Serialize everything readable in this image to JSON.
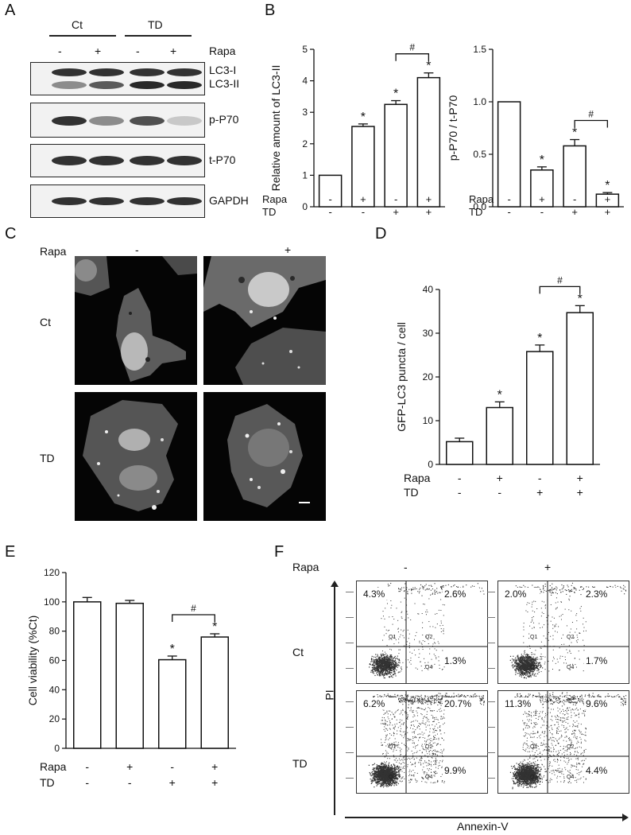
{
  "panels": {
    "A": "A",
    "B": "B",
    "C": "C",
    "D": "D",
    "E": "E",
    "F": "F"
  },
  "panelA": {
    "groups": [
      "Ct",
      "TD"
    ],
    "rapa_label": "Rapa",
    "rapa_signs": [
      "-",
      "+",
      "-",
      "+"
    ],
    "blots": [
      {
        "name": "lc3",
        "labels": [
          "LC3-I",
          "LC3-II"
        ]
      },
      {
        "name": "pp70",
        "labels": [
          "p-P70"
        ]
      },
      {
        "name": "tp70",
        "labels": [
          "t-P70"
        ]
      },
      {
        "name": "gapdh",
        "labels": [
          "GAPDH"
        ]
      }
    ],
    "band_intensity": {
      "lc3_i": [
        0.9,
        0.9,
        0.9,
        0.9
      ],
      "lc3_ii": [
        0.45,
        0.7,
        0.95,
        0.95
      ],
      "pp70": [
        0.9,
        0.45,
        0.75,
        0.15
      ],
      "tp70": [
        0.9,
        0.9,
        0.9,
        0.9
      ],
      "gapdh": [
        0.9,
        0.9,
        0.9,
        0.9
      ]
    }
  },
  "panelC": {
    "rapa_label": "Rapa",
    "col_signs": [
      "-",
      "+"
    ],
    "row_labels": [
      "Ct",
      "TD"
    ]
  },
  "panelF": {
    "rapa_label": "Rapa",
    "col_signs": [
      "-",
      "+"
    ],
    "row_labels": [
      "Ct",
      "TD"
    ],
    "y_axis": "PI",
    "x_axis": "Annexin-V",
    "quadrant_ids": [
      "Q1",
      "Q2",
      "Q3",
      "Q4"
    ],
    "plots": [
      {
        "ul": "4.3%",
        "ur": "2.6%",
        "lr": "1.3%"
      },
      {
        "ul": "2.0%",
        "ur": "2.3%",
        "lr": "1.7%"
      },
      {
        "ul": "6.2%",
        "ur": "20.7%",
        "lr": "9.9%"
      },
      {
        "ul": "11.3%",
        "ur": "9.6%",
        "lr": "4.4%"
      }
    ]
  },
  "conditions": {
    "rapa_label": "Rapa",
    "td_label": "TD",
    "rapa": [
      "-",
      "+",
      "-",
      "+"
    ],
    "td": [
      "-",
      "-",
      "+",
      "+"
    ]
  },
  "chart_data": [
    {
      "id": "B1",
      "type": "bar",
      "ylabel": "Relative amount of LC3-II",
      "ylim": [
        0,
        5
      ],
      "yticks": [
        "0",
        "1",
        "2",
        "3",
        "4",
        "5"
      ],
      "values": [
        1.0,
        2.55,
        3.25,
        4.1
      ],
      "errors": [
        0,
        0.08,
        0.12,
        0.15
      ],
      "marks": [
        "",
        "*",
        "*",
        "*"
      ],
      "bracket": {
        "from": 2,
        "to": 3,
        "label": "#"
      }
    },
    {
      "id": "B2",
      "type": "bar",
      "ylabel": "p-P70 / t-P70",
      "ylim": [
        0,
        1.5
      ],
      "yticks": [
        "0.0",
        "0.5",
        "1.0",
        "1.5"
      ],
      "values": [
        1.0,
        0.35,
        0.58,
        0.12
      ],
      "errors": [
        0,
        0.03,
        0.06,
        0.015
      ],
      "marks": [
        "",
        "*",
        "*",
        "*"
      ],
      "bracket": {
        "from": 2,
        "to": 3,
        "label": "#"
      }
    },
    {
      "id": "D",
      "type": "bar",
      "ylabel": "GFP-LC3 puncta / cell",
      "ylim": [
        0,
        40
      ],
      "yticks": [
        "0",
        "10",
        "20",
        "30",
        "40"
      ],
      "values": [
        5.2,
        13.0,
        25.8,
        34.7
      ],
      "errors": [
        0.8,
        1.3,
        1.5,
        1.6
      ],
      "marks": [
        "",
        "*",
        "*",
        "*"
      ],
      "bracket": {
        "from": 2,
        "to": 3,
        "label": "#"
      }
    },
    {
      "id": "E",
      "type": "bar",
      "ylabel": "Cell viability (%Ct)",
      "ylim": [
        0,
        120
      ],
      "yticks": [
        "0",
        "20",
        "40",
        "60",
        "80",
        "100",
        "120"
      ],
      "values": [
        100,
        99,
        60.5,
        76
      ],
      "errors": [
        3,
        2,
        2.5,
        2.2
      ],
      "marks": [
        "",
        "",
        "*",
        "*"
      ],
      "bracket": {
        "from": 2,
        "to": 3,
        "label": "#"
      }
    }
  ]
}
